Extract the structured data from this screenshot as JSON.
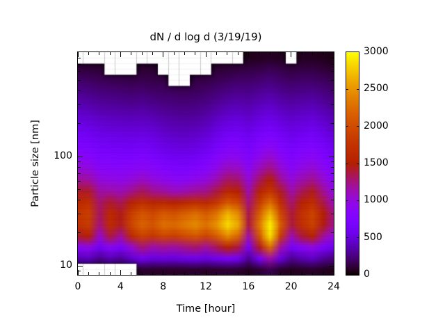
{
  "chart_data": {
    "type": "heatmap",
    "title": "dN / d log d (3/19/19)",
    "xlabel": "Time [hour]",
    "ylabel": "Particle size [nm]",
    "x_range": [
      0,
      24
    ],
    "x_major_ticks": [
      0,
      4,
      8,
      12,
      16,
      20,
      24
    ],
    "x_minor_ticks": [
      1,
      2,
      3,
      5,
      6,
      7,
      9,
      10,
      11,
      13,
      14,
      15,
      17,
      18,
      19,
      21,
      22,
      23
    ],
    "y_scale": "log",
    "y_range": [
      8.3,
      903
    ],
    "y_major_ticks": [
      10,
      100
    ],
    "y_minor_ticks": [
      9,
      20,
      30,
      40,
      50,
      60,
      70,
      80,
      90,
      200,
      300,
      400,
      500,
      600,
      700,
      800,
      900
    ],
    "grid_on": false,
    "colorbar": {
      "min": 0,
      "max": 3000,
      "ticks": [
        0,
        500,
        1000,
        1500,
        2000,
        2500,
        3000
      ],
      "colormap": "gnuplot",
      "color_anchors": [
        "#000000",
        "#6801dd",
        "#9309de",
        "#b42000",
        "#dd6b00",
        "#ffff00"
      ]
    },
    "grid": {
      "hours": [
        0,
        1,
        2,
        3,
        4,
        5,
        6,
        7,
        8,
        9,
        10,
        11,
        12,
        13,
        14,
        15,
        16,
        17,
        18,
        19,
        20,
        21,
        22,
        23,
        24
      ],
      "sizes_nm": [
        892,
        698,
        547,
        428,
        335,
        262,
        205,
        161,
        126,
        98,
        77,
        60,
        47,
        37,
        29,
        23,
        17.7,
        13.9,
        10.9,
        8.5
      ],
      "nodata_value": -1,
      "values": [
        [
          -1,
          -1,
          -1,
          -1,
          -1,
          -1,
          -1,
          -1,
          -1,
          -1,
          -1,
          -1,
          -1,
          -1,
          -1,
          -1,
          50,
          60,
          70,
          60,
          -1,
          60,
          60,
          50,
          40
        ],
        [
          120,
          110,
          100,
          -1,
          -1,
          -1,
          100,
          90,
          -1,
          -1,
          -1,
          -1,
          -1,
          100,
          110,
          120,
          130,
          140,
          160,
          140,
          120,
          130,
          130,
          110,
          90
        ],
        [
          200,
          190,
          170,
          160,
          150,
          140,
          150,
          140,
          130,
          -1,
          -1,
          130,
          140,
          160,
          180,
          200,
          200,
          220,
          240,
          210,
          190,
          200,
          200,
          180,
          150
        ],
        [
          280,
          260,
          240,
          230,
          220,
          210,
          220,
          200,
          190,
          180,
          170,
          180,
          200,
          230,
          260,
          280,
          270,
          300,
          320,
          280,
          260,
          270,
          280,
          250,
          210
        ],
        [
          360,
          340,
          310,
          300,
          290,
          280,
          290,
          270,
          250,
          240,
          230,
          240,
          260,
          300,
          340,
          360,
          340,
          380,
          410,
          360,
          330,
          350,
          360,
          320,
          270
        ],
        [
          450,
          430,
          390,
          380,
          370,
          360,
          370,
          350,
          320,
          300,
          290,
          300,
          330,
          380,
          430,
          450,
          420,
          470,
          510,
          450,
          410,
          430,
          450,
          400,
          340
        ],
        [
          550,
          520,
          480,
          460,
          450,
          440,
          450,
          430,
          390,
          370,
          360,
          370,
          400,
          470,
          530,
          550,
          500,
          570,
          620,
          540,
          490,
          520,
          550,
          480,
          410
        ],
        [
          650,
          620,
          570,
          550,
          540,
          530,
          550,
          520,
          470,
          440,
          430,
          450,
          490,
          570,
          650,
          660,
          590,
          690,
          750,
          650,
          580,
          620,
          650,
          570,
          490
        ],
        [
          760,
          720,
          660,
          640,
          630,
          620,
          650,
          610,
          550,
          520,
          510,
          530,
          580,
          680,
          780,
          780,
          680,
          810,
          890,
          760,
          670,
          730,
          770,
          670,
          570
        ],
        [
          890,
          850,
          760,
          740,
          730,
          730,
          770,
          720,
          660,
          620,
          610,
          640,
          700,
          810,
          930,
          920,
          780,
          950,
          1060,
          890,
          770,
          850,
          900,
          780,
          660
        ],
        [
          1030,
          1000,
          880,
          850,
          840,
          860,
          910,
          850,
          790,
          740,
          730,
          780,
          840,
          960,
          1110,
          1090,
          890,
          1120,
          1260,
          1040,
          880,
          990,
          1050,
          900,
          750
        ],
        [
          1200,
          1180,
          1010,
          980,
          960,
          1010,
          1090,
          1010,
          950,
          890,
          890,
          950,
          1010,
          1140,
          1330,
          1290,
          1010,
          1320,
          1500,
          1220,
          1010,
          1150,
          1230,
          1040,
          860
        ],
        [
          1420,
          1430,
          1170,
          1160,
          1120,
          1220,
          1330,
          1230,
          1180,
          1110,
          1130,
          1200,
          1230,
          1380,
          1620,
          1540,
          1140,
          1570,
          1800,
          1440,
          1150,
          1340,
          1450,
          1200,
          980
        ],
        [
          1650,
          1720,
          1290,
          1420,
          1330,
          1560,
          1710,
          1600,
          1620,
          1550,
          1620,
          1700,
          1650,
          1800,
          2100,
          1960,
          1260,
          1860,
          2250,
          1700,
          1280,
          1550,
          1700,
          1360,
          1100
        ],
        [
          1790,
          1890,
          1320,
          1640,
          1460,
          1890,
          2090,
          1970,
          2130,
          2070,
          2180,
          2280,
          2140,
          2320,
          2680,
          2460,
          1360,
          2170,
          2700,
          1980,
          1390,
          1750,
          1930,
          1490,
          1230
        ],
        [
          1740,
          1850,
          1260,
          1670,
          1440,
          1960,
          2190,
          2080,
          2290,
          2240,
          2350,
          2450,
          2300,
          2500,
          2850,
          2620,
          1380,
          2340,
          2950,
          2140,
          1380,
          1720,
          1910,
          1460,
          1210
        ],
        [
          1420,
          1520,
          1030,
          1380,
          1170,
          1640,
          1900,
          1800,
          1940,
          1880,
          1990,
          2080,
          1930,
          2130,
          2440,
          2210,
          1140,
          2100,
          2870,
          1850,
          1110,
          1390,
          1560,
          1180,
          970
        ],
        [
          850,
          930,
          620,
          840,
          700,
          1010,
          1260,
          1130,
          1190,
          1150,
          1230,
          1290,
          1180,
          1330,
          1530,
          1370,
          680,
          1440,
          2250,
          1160,
          660,
          830,
          950,
          700,
          570
        ],
        [
          380,
          420,
          280,
          380,
          310,
          460,
          610,
          520,
          540,
          520,
          560,
          590,
          530,
          610,
          700,
          620,
          300,
          690,
          1150,
          520,
          290,
          370,
          430,
          310,
          250
        ],
        [
          -1,
          -1,
          -1,
          -1,
          -1,
          -1,
          90,
          80,
          80,
          80,
          80,
          90,
          80,
          90,
          100,
          90,
          60,
          100,
          160,
          80,
          60,
          70,
          80,
          60,
          50
        ]
      ]
    }
  }
}
